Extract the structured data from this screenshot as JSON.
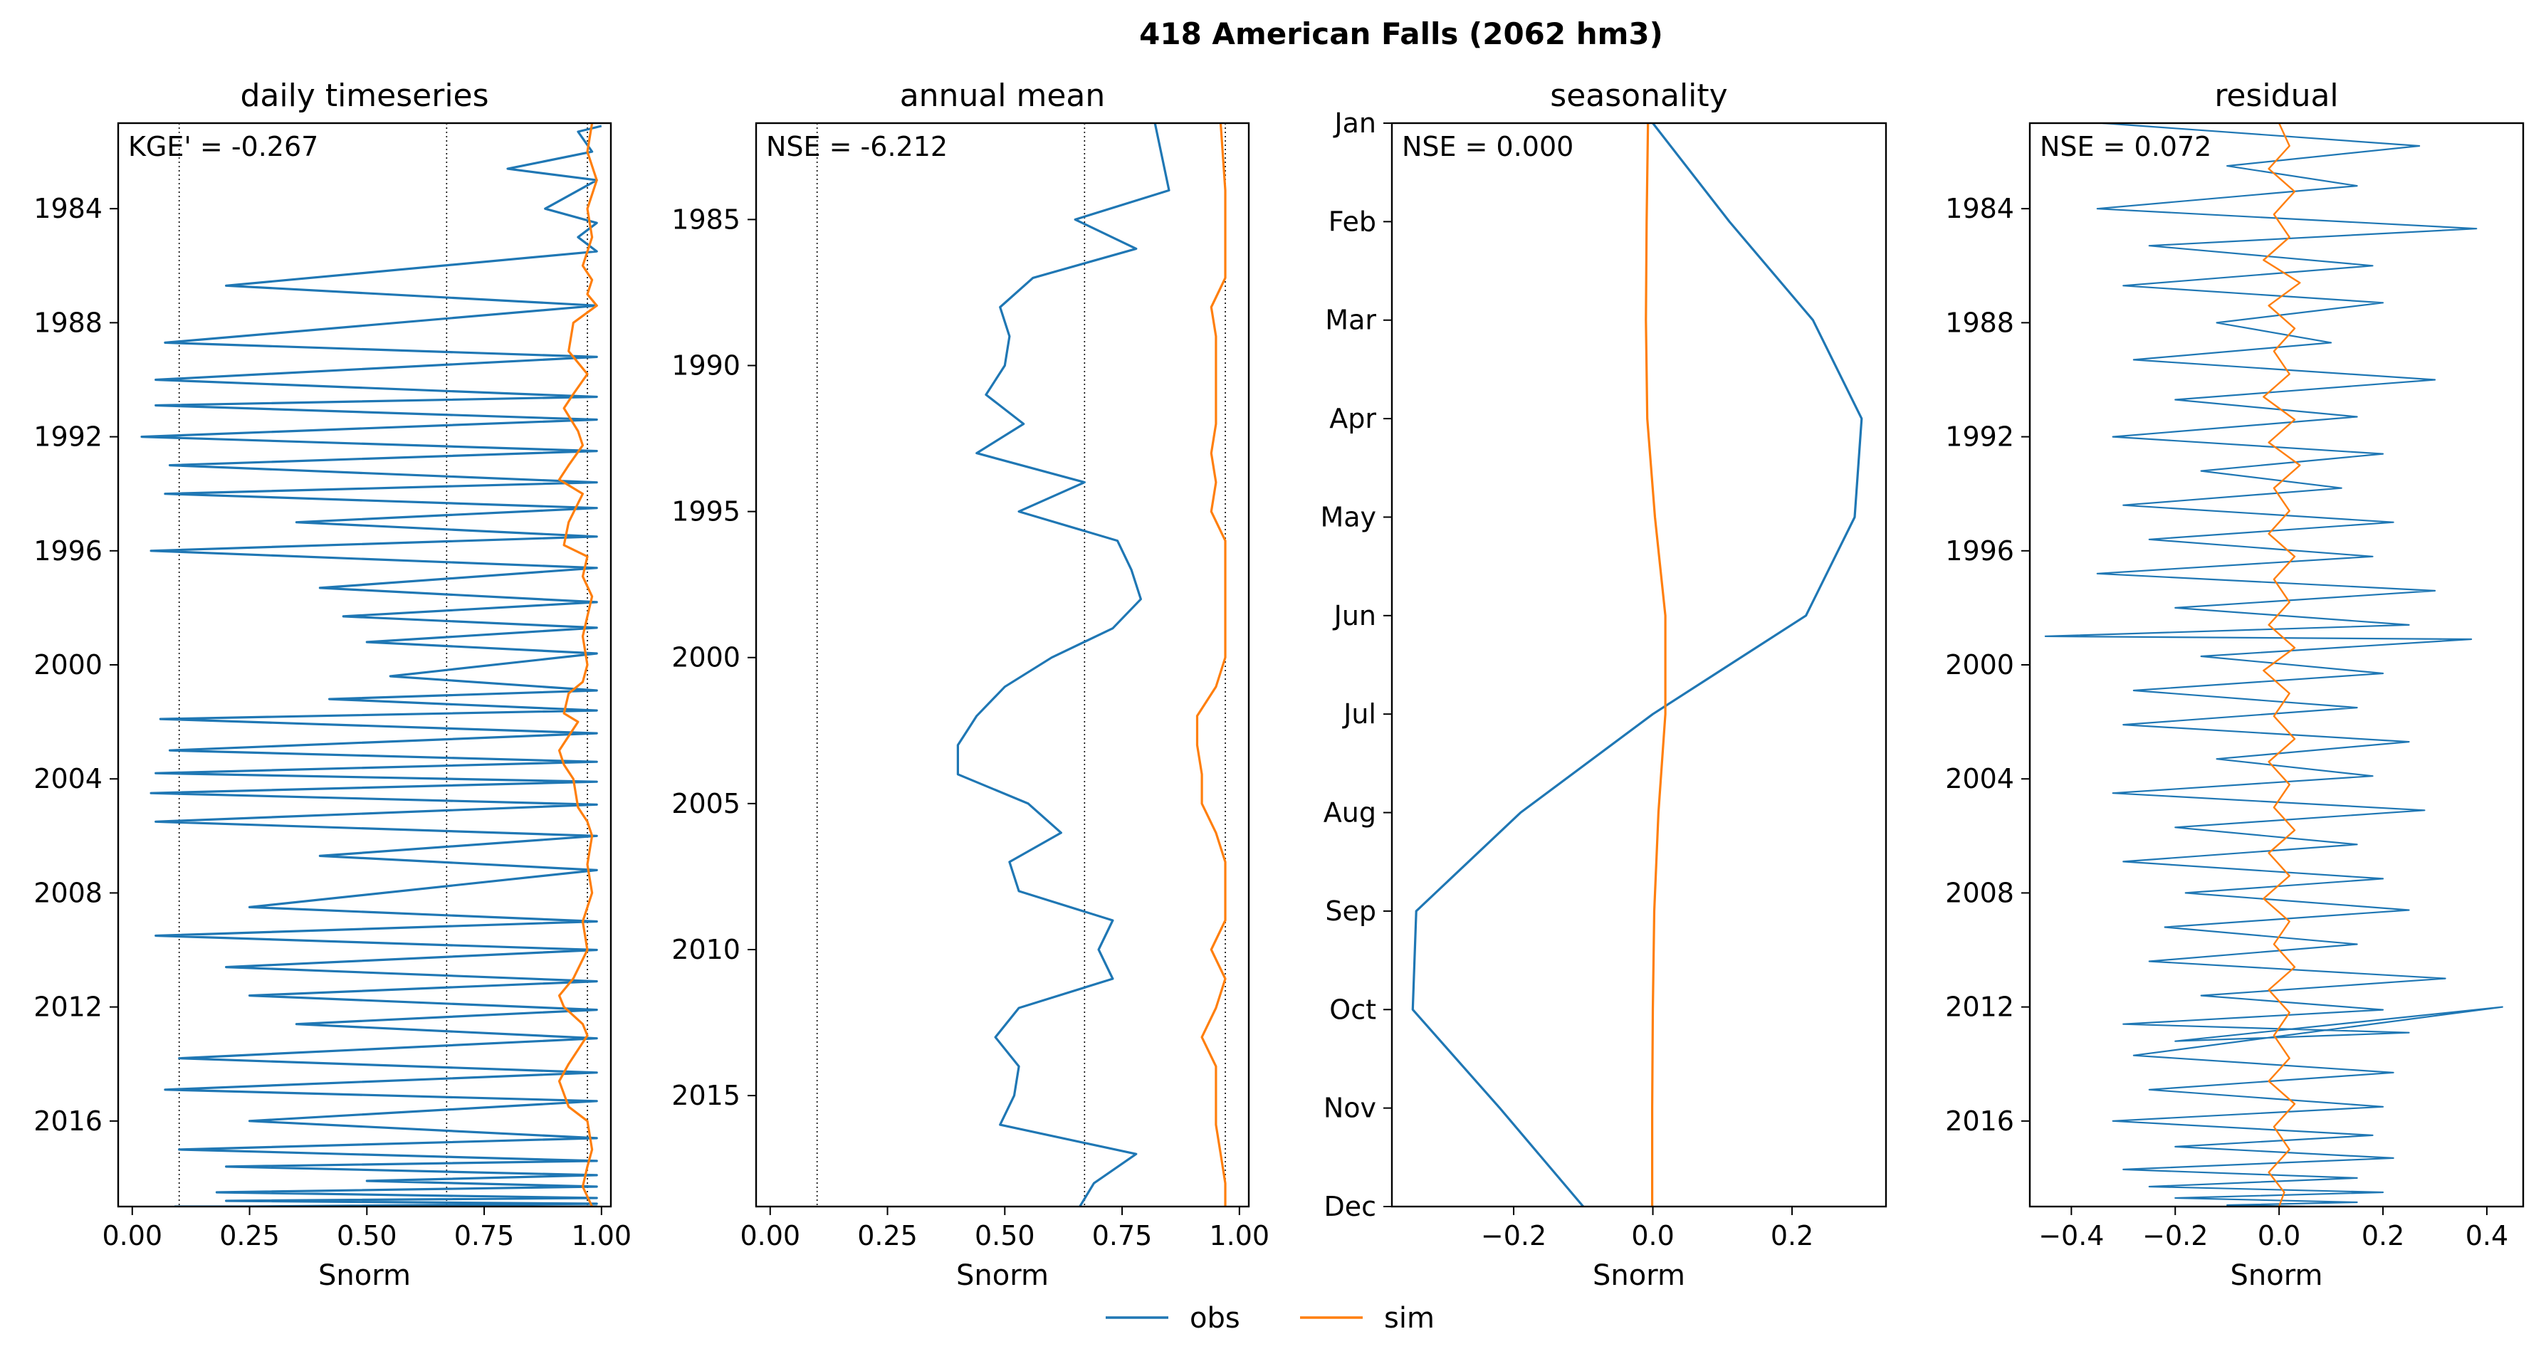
{
  "figure": {
    "suptitle": "418  American Falls (2062 hm3)"
  },
  "legend": {
    "placement": "bottom-center",
    "entries": [
      {
        "name": "obs",
        "color": "#1f77b4"
      },
      {
        "name": "sim",
        "color": "#ff7f0e"
      }
    ]
  },
  "chart_data": [
    {
      "type": "line",
      "title": "daily timeseries",
      "xlabel": "Snorm",
      "annotation": "KGE' = -0.267",
      "xlim": [
        -0.03,
        1.02
      ],
      "ylim": [
        2019.0,
        1981.0
      ],
      "xticks": [
        0.0,
        0.25,
        0.5,
        0.75,
        1.0
      ],
      "xtick_labels": [
        "0.00",
        "0.25",
        "0.50",
        "0.75",
        "1.00"
      ],
      "yticks": [
        1984,
        1988,
        1992,
        1996,
        2000,
        2004,
        2008,
        2012,
        2016
      ],
      "yticks_labels": [
        "1984",
        "1988",
        "1992",
        "1996",
        "2000",
        "2004",
        "2008",
        "2012",
        "2016"
      ],
      "vlines": [
        0.1,
        0.67,
        0.97
      ],
      "series": [
        {
          "name": "obs",
          "color": "#1f77b4",
          "width": 3.2,
          "x": [
            1.0,
            0.95,
            0.98,
            0.8,
            0.99,
            0.88,
            0.99,
            0.95,
            0.99,
            0.2,
            0.99,
            0.07,
            0.99,
            0.05,
            0.99,
            0.05,
            0.99,
            0.02,
            0.99,
            0.08,
            0.99,
            0.07,
            0.99,
            0.35,
            0.99,
            0.04,
            0.99,
            0.4,
            0.99,
            0.45,
            0.99,
            0.5,
            0.99,
            0.55,
            0.99,
            0.42,
            0.99,
            0.06,
            0.99,
            0.08,
            0.99,
            0.05,
            0.99,
            0.04,
            0.99,
            0.05,
            0.99,
            0.4,
            0.99,
            0.25,
            0.99,
            0.05,
            0.99,
            0.2,
            0.99,
            0.25,
            0.99,
            0.35,
            0.99,
            0.1,
            0.99,
            0.07,
            0.99,
            0.25,
            0.99,
            0.1,
            0.99,
            0.2,
            0.99,
            0.5,
            0.99,
            0.18,
            0.99,
            0.2,
            0.99,
            0.25,
            0.99,
            0.09
          ],
          "y": [
            1981.1,
            1981.3,
            1982.0,
            1982.6,
            1983.0,
            1984.0,
            1984.5,
            1985.0,
            1985.5,
            1986.7,
            1987.4,
            1988.7,
            1989.2,
            1990.0,
            1990.6,
            1990.9,
            1991.4,
            1992.0,
            1992.5,
            1993.0,
            1993.6,
            1994.0,
            1994.5,
            1995.0,
            1995.5,
            1996.0,
            1996.6,
            1997.3,
            1997.8,
            1998.3,
            1998.7,
            1999.2,
            1999.6,
            2000.4,
            2000.9,
            2001.2,
            2001.6,
            2001.9,
            2002.4,
            2003.0,
            2003.4,
            2003.8,
            2004.1,
            2004.5,
            2004.9,
            2005.5,
            2006.0,
            2006.7,
            2007.2,
            2008.5,
            2009.0,
            2009.5,
            2010.0,
            2010.6,
            2011.1,
            2011.6,
            2012.1,
            2012.6,
            2013.1,
            2013.8,
            2014.3,
            2014.9,
            2015.3,
            2016.0,
            2016.6,
            2017.0,
            2017.4,
            2017.6,
            2017.9,
            2018.1,
            2018.3,
            2018.5,
            2018.7,
            2018.8,
            2018.9,
            2019.0,
            2019.0,
            2019.0
          ]
        },
        {
          "name": "sim",
          "color": "#ff7f0e",
          "width": 3.2,
          "x": [
            0.98,
            0.97,
            0.99,
            0.97,
            0.98,
            0.96,
            0.98,
            0.97,
            0.99,
            0.94,
            0.93,
            0.97,
            0.94,
            0.92,
            0.95,
            0.96,
            0.93,
            0.91,
            0.96,
            0.93,
            0.92,
            0.97,
            0.96,
            0.98,
            0.97,
            0.96,
            0.97,
            0.96,
            0.93,
            0.92,
            0.95,
            0.93,
            0.91,
            0.92,
            0.94,
            0.95,
            0.97,
            0.98,
            0.97,
            0.98,
            0.96,
            0.97,
            0.94,
            0.91,
            0.92,
            0.96,
            0.97,
            0.93,
            0.91,
            0.93,
            0.97,
            0.98,
            0.97,
            0.96,
            0.98
          ],
          "y": [
            1981.0,
            1982.0,
            1983.0,
            1984.0,
            1985.0,
            1986.0,
            1986.5,
            1987.0,
            1987.4,
            1988.0,
            1989.0,
            1989.8,
            1990.5,
            1991.0,
            1991.8,
            1992.3,
            1993.0,
            1993.5,
            1994.0,
            1995.0,
            1995.8,
            1996.2,
            1996.9,
            1997.6,
            1998.3,
            1999.0,
            2000.0,
            2000.6,
            2001.0,
            2001.7,
            2002.0,
            2002.5,
            2003.0,
            2003.5,
            2004.0,
            2005.0,
            2005.5,
            2006.0,
            2007.0,
            2008.0,
            2009.0,
            2010.0,
            2011.0,
            2011.6,
            2012.0,
            2012.6,
            2013.0,
            2014.0,
            2014.6,
            2015.5,
            2016.0,
            2017.0,
            2017.6,
            2018.3,
            2019.0
          ]
        }
      ]
    },
    {
      "type": "line",
      "title": "annual mean",
      "xlabel": "Snorm",
      "annotation": "NSE = -6.212",
      "xlim": [
        -0.03,
        1.02
      ],
      "ylim": [
        2018.8,
        1981.7
      ],
      "xticks": [
        0.0,
        0.25,
        0.5,
        0.75,
        1.0
      ],
      "xtick_labels": [
        "0.00",
        "0.25",
        "0.50",
        "0.75",
        "1.00"
      ],
      "yticks": [
        1985,
        1990,
        1995,
        2000,
        2005,
        2010,
        2015
      ],
      "yticks_labels": [
        "1985",
        "1990",
        "1995",
        "2000",
        "2005",
        "2010",
        "2015"
      ],
      "vlines": [
        0.1,
        0.67,
        0.97
      ],
      "series": [
        {
          "name": "obs",
          "color": "#1f77b4",
          "width": 3.2,
          "x": [
            0.82,
            0.85,
            0.65,
            0.78,
            0.56,
            0.49,
            0.51,
            0.5,
            0.46,
            0.54,
            0.44,
            0.67,
            0.53,
            0.74,
            0.77,
            0.79,
            0.73,
            0.6,
            0.5,
            0.44,
            0.4,
            0.4,
            0.55,
            0.62,
            0.51,
            0.53,
            0.73,
            0.7,
            0.73,
            0.53,
            0.48,
            0.53,
            0.52,
            0.49,
            0.78,
            0.69,
            0.66
          ],
          "y": [
            1981.7,
            1984.0,
            1985.0,
            1986.0,
            1987.0,
            1988.0,
            1989.0,
            1990.0,
            1991.0,
            1992.0,
            1993.0,
            1994.0,
            1995.0,
            1996.0,
            1997.0,
            1998.0,
            1999.0,
            2000.0,
            2001.0,
            2002.0,
            2003.0,
            2004.0,
            2005.0,
            2006.0,
            2007.0,
            2008.0,
            2009.0,
            2010.0,
            2011.0,
            2012.0,
            2013.0,
            2014.0,
            2015.0,
            2016.0,
            2017.0,
            2018.0,
            2018.8
          ]
        },
        {
          "name": "sim",
          "color": "#ff7f0e",
          "width": 3.2,
          "x": [
            0.96,
            0.97,
            0.97,
            0.97,
            0.97,
            0.94,
            0.95,
            0.95,
            0.95,
            0.95,
            0.94,
            0.95,
            0.94,
            0.97,
            0.97,
            0.97,
            0.97,
            0.97,
            0.95,
            0.91,
            0.91,
            0.92,
            0.92,
            0.95,
            0.97,
            0.97,
            0.97,
            0.94,
            0.97,
            0.95,
            0.92,
            0.95,
            0.95,
            0.95,
            0.96,
            0.97,
            0.97
          ],
          "y": [
            1981.7,
            1984.0,
            1985.0,
            1986.0,
            1987.0,
            1988.0,
            1989.0,
            1990.0,
            1991.0,
            1992.0,
            1993.0,
            1994.0,
            1995.0,
            1996.0,
            1997.0,
            1998.0,
            1999.0,
            2000.0,
            2001.0,
            2002.0,
            2003.0,
            2004.0,
            2005.0,
            2006.0,
            2007.0,
            2008.0,
            2009.0,
            2010.0,
            2011.0,
            2012.0,
            2013.0,
            2014.0,
            2015.0,
            2016.0,
            2017.0,
            2018.0,
            2018.8
          ]
        }
      ]
    },
    {
      "type": "line",
      "title": "seasonality",
      "xlabel": "Snorm",
      "annotation": "NSE = 0.000",
      "xlim": [
        -0.375,
        0.335
      ],
      "ylim": [
        11,
        0
      ],
      "xticks": [
        -0.2,
        0.0,
        0.2
      ],
      "xtick_labels": [
        "−0.2",
        "0.0",
        "0.2"
      ],
      "yticks": [
        0,
        1,
        2,
        3,
        4,
        5,
        6,
        7,
        8,
        9,
        10,
        11
      ],
      "yticks_labels": [
        "Jan",
        "Feb",
        "Mar",
        "Apr",
        "May",
        "Jun",
        "Jul",
        "Aug",
        "Sep",
        "Oct",
        "Nov",
        "Dec"
      ],
      "vlines": [],
      "series": [
        {
          "name": "obs",
          "color": "#1f77b4",
          "width": 3.2,
          "x": [
            0.0,
            0.11,
            0.23,
            0.3,
            0.29,
            0.22,
            0.0,
            -0.19,
            -0.34,
            -0.345,
            -0.22,
            -0.1
          ],
          "y": [
            0,
            1,
            2,
            3,
            4,
            5,
            6,
            7,
            8,
            9,
            10,
            11
          ]
        },
        {
          "name": "sim",
          "color": "#ff7f0e",
          "width": 3.2,
          "x": [
            -0.007,
            -0.009,
            -0.01,
            -0.008,
            0.003,
            0.018,
            0.018,
            0.008,
            0.002,
            0.0,
            -0.001,
            -0.001
          ],
          "y": [
            0,
            1,
            2,
            3,
            4,
            5,
            6,
            7,
            8,
            9,
            10,
            11
          ]
        }
      ]
    },
    {
      "type": "line",
      "title": "residual",
      "xlabel": "Snorm",
      "annotation": "NSE = 0.072",
      "xlim": [
        -0.48,
        0.47
      ],
      "ylim": [
        2019.0,
        1981.0
      ],
      "xticks": [
        -0.4,
        -0.2,
        0.0,
        0.2,
        0.4
      ],
      "xtick_labels": [
        "−0.4",
        "−0.2",
        "0.0",
        "0.2",
        "0.4"
      ],
      "yticks": [
        1984,
        1988,
        1992,
        1996,
        2000,
        2004,
        2008,
        2012,
        2016
      ],
      "yticks_labels": [
        "1984",
        "1988",
        "1992",
        "1996",
        "2000",
        "2004",
        "2008",
        "2012",
        "2016"
      ],
      "vlines": [],
      "series": [
        {
          "name": "obs",
          "color": "#1f77b4",
          "width": 2.2,
          "x": [
            -0.34,
            0.27,
            -0.1,
            0.15,
            -0.35,
            0.38,
            -0.25,
            0.18,
            -0.3,
            0.2,
            -0.12,
            0.1,
            -0.28,
            0.3,
            -0.2,
            0.15,
            -0.32,
            0.2,
            -0.15,
            0.12,
            -0.3,
            0.22,
            -0.25,
            0.18,
            -0.35,
            0.3,
            -0.2,
            0.25,
            -0.45,
            0.37,
            -0.15,
            0.2,
            -0.28,
            0.15,
            -0.3,
            0.25,
            -0.12,
            0.18,
            -0.32,
            0.28,
            -0.2,
            0.15,
            -0.3,
            0.2,
            -0.18,
            0.25,
            -0.22,
            0.15,
            -0.25,
            0.32,
            -0.15,
            0.2,
            -0.3,
            0.25,
            -0.2,
            0.43,
            -0.28,
            0.22,
            -0.25,
            0.2,
            -0.32,
            0.18,
            -0.2,
            0.22,
            -0.3,
            0.15,
            -0.25,
            0.2,
            -0.2,
            0.15,
            -0.1,
            0.05
          ],
          "y": [
            1981.0,
            1981.8,
            1982.5,
            1983.2,
            1984.0,
            1984.7,
            1985.3,
            1986.0,
            1986.7,
            1987.3,
            1988.0,
            1988.7,
            1989.3,
            1990.0,
            1990.7,
            1991.3,
            1992.0,
            1992.6,
            1993.2,
            1993.8,
            1994.4,
            1995.0,
            1995.6,
            1996.2,
            1996.8,
            1997.4,
            1998.0,
            1998.6,
            1999.0,
            1999.1,
            1999.7,
            2000.3,
            2000.9,
            2001.5,
            2002.1,
            2002.7,
            2003.3,
            2003.9,
            2004.5,
            2005.1,
            2005.7,
            2006.3,
            2006.9,
            2007.5,
            2008.0,
            2008.6,
            2009.2,
            2009.8,
            2010.4,
            2011.0,
            2011.6,
            2012.1,
            2012.6,
            2012.9,
            2013.2,
            2012.0,
            2013.7,
            2014.3,
            2014.9,
            2015.5,
            2016.0,
            2016.5,
            2016.9,
            2017.3,
            2017.7,
            2018.0,
            2018.3,
            2018.5,
            2018.7,
            2018.85,
            2018.95,
            2019.0
          ]
        },
        {
          "name": "sim",
          "color": "#ff7f0e",
          "width": 2.4,
          "x": [
            0.0,
            0.02,
            -0.02,
            0.03,
            -0.01,
            0.02,
            -0.03,
            0.04,
            -0.02,
            0.03,
            -0.01,
            0.02,
            -0.03,
            0.03,
            -0.02,
            0.04,
            -0.01,
            0.02,
            -0.02,
            0.03,
            -0.01,
            0.02,
            -0.02,
            0.03,
            -0.03,
            0.02,
            -0.01,
            0.03,
            -0.02,
            0.02,
            -0.01,
            0.03,
            -0.02,
            0.02,
            -0.03,
            0.02,
            -0.01,
            0.03,
            -0.02,
            0.02,
            -0.01,
            0.02,
            -0.02,
            0.03,
            -0.01,
            0.02,
            -0.02,
            0.01,
            0.0
          ],
          "y": [
            1981.0,
            1981.8,
            1982.6,
            1983.4,
            1984.2,
            1985.0,
            1985.8,
            1986.6,
            1987.4,
            1988.2,
            1989.0,
            1989.8,
            1990.6,
            1991.4,
            1992.2,
            1993.0,
            1993.8,
            1994.6,
            1995.4,
            1996.2,
            1997.0,
            1997.8,
            1998.6,
            1999.4,
            2000.2,
            2001.0,
            2001.8,
            2002.6,
            2003.4,
            2004.2,
            2005.0,
            2005.8,
            2006.6,
            2007.4,
            2008.2,
            2009.0,
            2009.8,
            2010.6,
            2011.4,
            2012.2,
            2013.0,
            2013.8,
            2014.6,
            2015.4,
            2016.2,
            2017.0,
            2017.8,
            2018.5,
            2019.0
          ]
        }
      ]
    }
  ]
}
